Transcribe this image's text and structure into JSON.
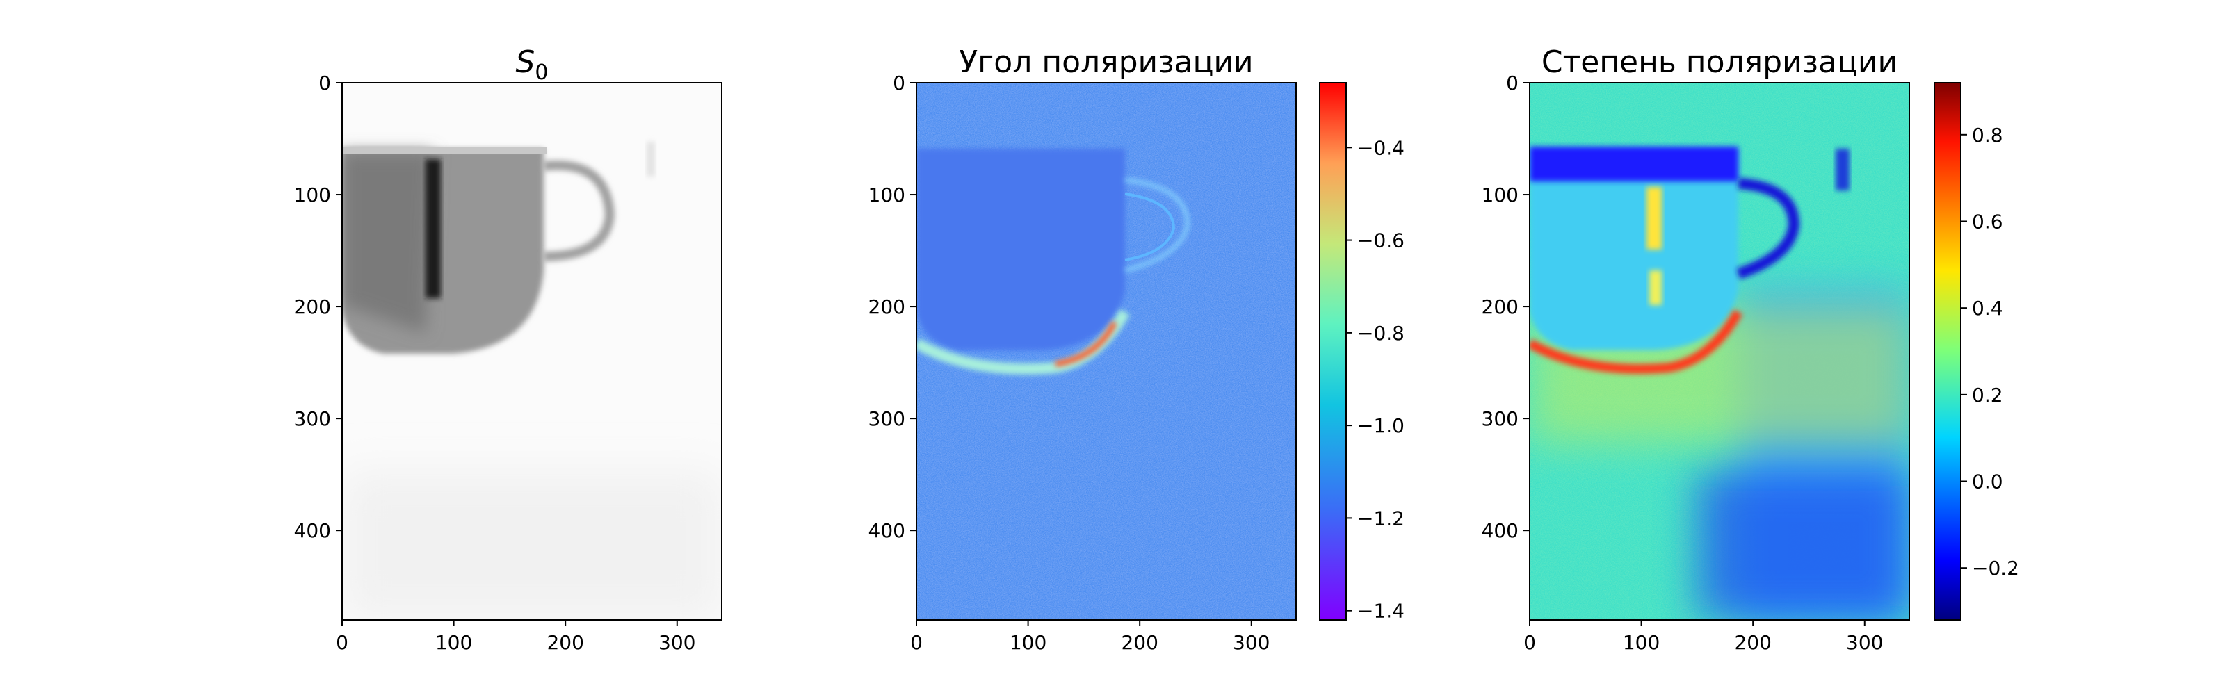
{
  "chart_data": [
    {
      "type": "heatmap",
      "panel": "s0",
      "title_base": "S",
      "title_sub": "0",
      "colormap": "gray_r",
      "xlim": [
        0,
        340
      ],
      "ylim": [
        480,
        0
      ],
      "xticks": [
        0,
        100,
        200,
        300
      ],
      "yticks": [
        0,
        100,
        200,
        300,
        400
      ],
      "colorbar": false,
      "content": "grayscale image of a cup with handle on a white background"
    },
    {
      "type": "heatmap",
      "panel": "angle",
      "title": "Угол поляризации",
      "colormap": "rainbow",
      "xlim": [
        0,
        340
      ],
      "ylim": [
        480,
        0
      ],
      "xticks": [
        0,
        100,
        200,
        300
      ],
      "yticks": [
        0,
        100,
        200,
        300,
        400
      ],
      "colorbar": true,
      "colorbar_range": [
        -1.42,
        -0.26
      ],
      "colorbar_ticks": [
        -0.4,
        -0.6,
        -0.8,
        -1.0,
        -1.2,
        -1.4
      ],
      "colorbar_labels": [
        "−0.4",
        "−0.6",
        "−0.8",
        "−1.0",
        "−1.2",
        "−1.4"
      ]
    },
    {
      "type": "heatmap",
      "panel": "degree",
      "title": "Степень поляризации",
      "colormap": "jet",
      "xlim": [
        0,
        340
      ],
      "ylim": [
        480,
        0
      ],
      "xticks": [
        0,
        100,
        200,
        300
      ],
      "yticks": [
        0,
        100,
        200,
        300,
        400
      ],
      "colorbar": true,
      "colorbar_range": [
        -0.32,
        0.92
      ],
      "colorbar_ticks": [
        0.8,
        0.6,
        0.4,
        0.2,
        0.0,
        -0.2
      ],
      "colorbar_labels": [
        "0.8",
        "0.6",
        "0.4",
        "0.2",
        "0.0",
        "−0.2"
      ]
    }
  ]
}
